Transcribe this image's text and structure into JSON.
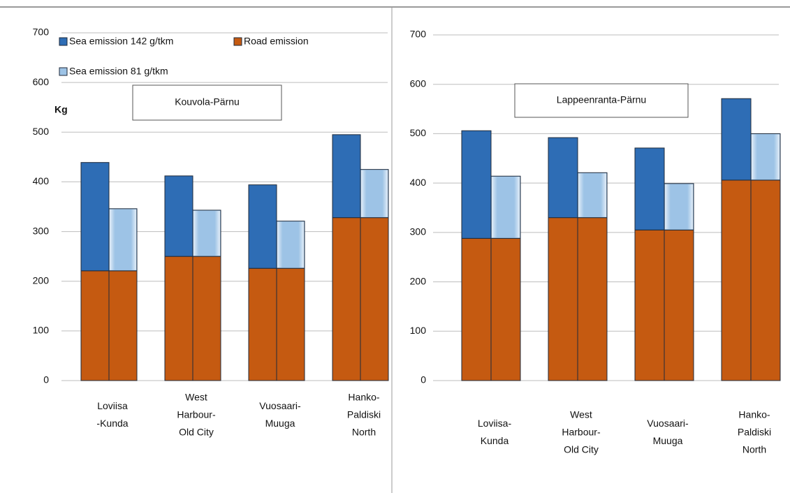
{
  "chart_data": [
    {
      "type": "bar",
      "title": "Kouvola-Pärnu",
      "y_label": "Kg",
      "legend": true,
      "categories": [
        [
          "Loviisa",
          "-Kunda"
        ],
        [
          "West",
          "Harbour-",
          "Old City"
        ],
        [
          "Vuosaari-",
          "Muuga"
        ],
        [
          "Hanko-",
          "Paldiski",
          "North"
        ]
      ],
      "series": [
        {
          "name": "Road emission",
          "color": "#c55a11",
          "values": [
            221,
            250,
            226,
            328
          ]
        },
        {
          "name": "Sea emission 142 g/tkm",
          "color": "#2e6db5",
          "values": [
            218,
            162,
            168,
            167
          ]
        },
        {
          "name": "Sea emission 81 g/tkm",
          "color": "#9dc3e6",
          "values": [
            125,
            93,
            95,
            97
          ]
        }
      ],
      "ylim": [
        0,
        700
      ],
      "yticks": [
        0,
        100,
        200,
        300,
        400,
        500,
        600,
        700
      ],
      "grid": true
    },
    {
      "type": "bar",
      "title": "Lappeenranta-Pärnu",
      "legend": false,
      "categories": [
        [
          "Loviisa-",
          "Kunda"
        ],
        [
          "West",
          "Harbour-",
          "Old City"
        ],
        [
          "Vuosaari-",
          "Muuga"
        ],
        [
          "Hanko-",
          "Paldiski",
          "North"
        ]
      ],
      "series": [
        {
          "color": "#c55a11",
          "values": [
            288,
            330,
            305,
            406
          ]
        },
        {
          "color": "#2e6db5",
          "values": [
            218,
            162,
            166,
            165
          ]
        },
        {
          "color": "#9dc3e6",
          "values": [
            126,
            91,
            94,
            94
          ]
        }
      ],
      "ylim": [
        0,
        700
      ],
      "yticks": [
        0,
        100,
        200,
        300,
        400,
        500,
        600,
        700
      ],
      "grid": true
    }
  ]
}
